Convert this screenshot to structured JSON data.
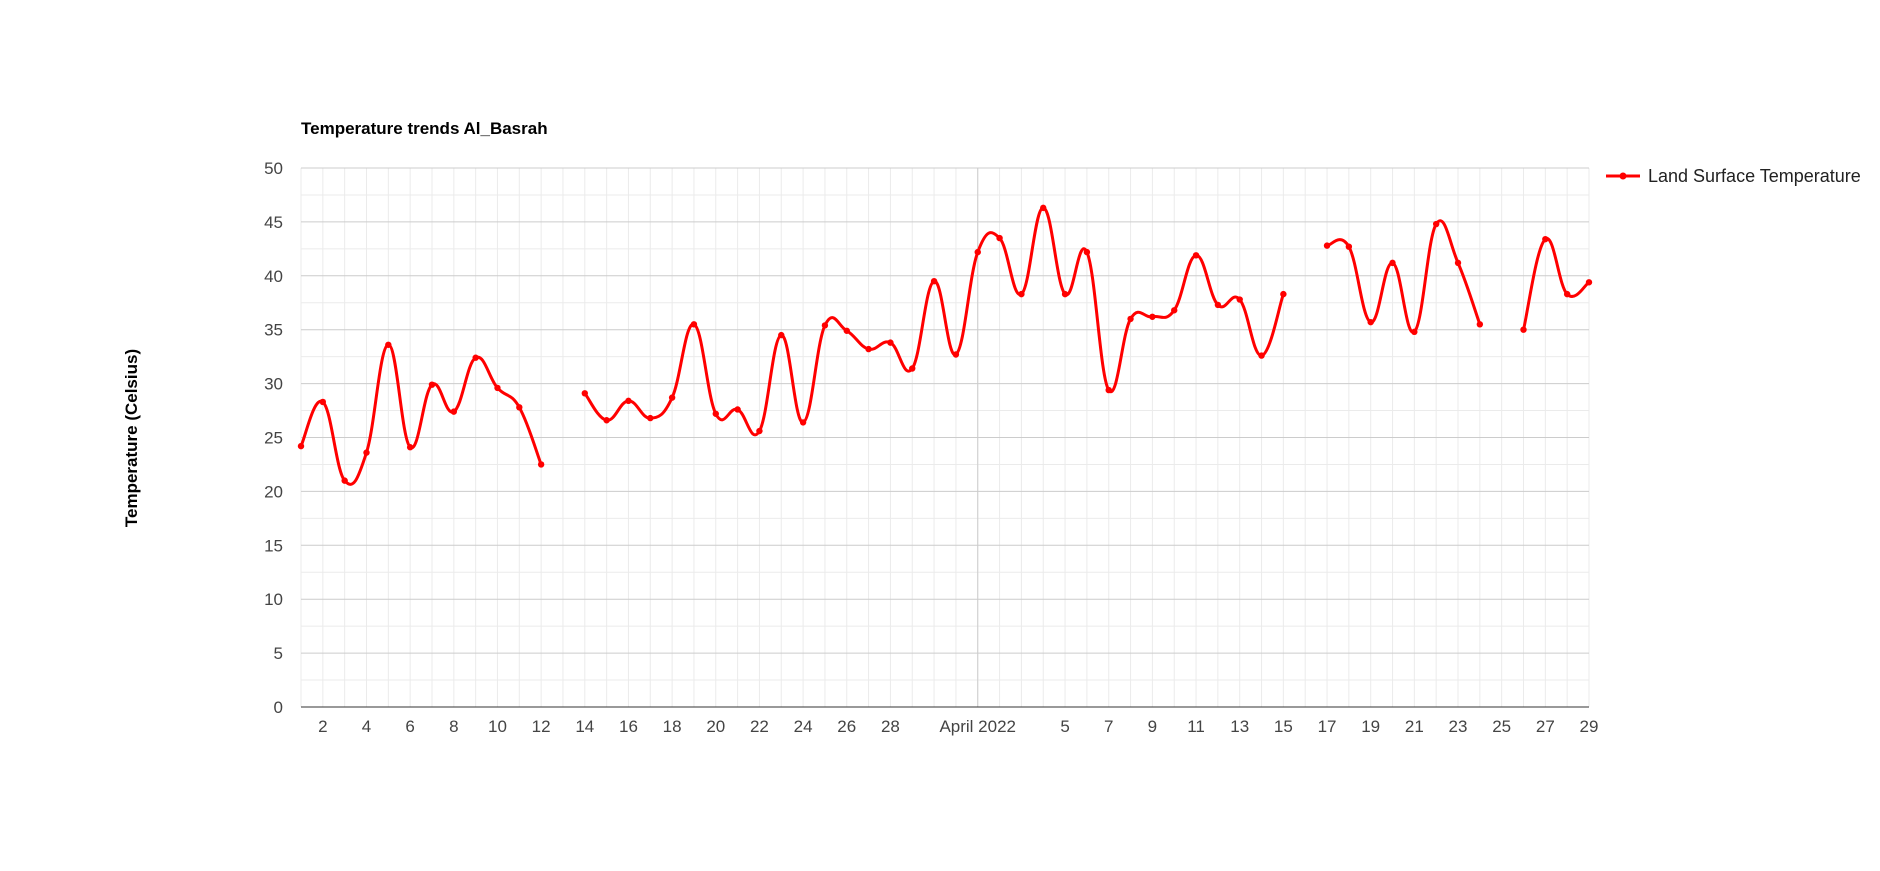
{
  "colors": {
    "series": "#ff0000"
  },
  "chart_data": {
    "type": "line",
    "title": "Temperature trends Al_Basrah",
    "xlabel": "",
    "ylabel": "Temperature (Celsius)",
    "ylim": [
      0,
      50
    ],
    "yticks": [
      0,
      5,
      10,
      15,
      20,
      25,
      30,
      35,
      40,
      45,
      50
    ],
    "xlim": [
      "2022-03-01",
      "2022-04-29"
    ],
    "grid": true,
    "legend_position": "right",
    "xticks": [
      {
        "date": "2022-03-02",
        "label": "2"
      },
      {
        "date": "2022-03-04",
        "label": "4"
      },
      {
        "date": "2022-03-06",
        "label": "6"
      },
      {
        "date": "2022-03-08",
        "label": "8"
      },
      {
        "date": "2022-03-10",
        "label": "10"
      },
      {
        "date": "2022-03-12",
        "label": "12"
      },
      {
        "date": "2022-03-14",
        "label": "14"
      },
      {
        "date": "2022-03-16",
        "label": "16"
      },
      {
        "date": "2022-03-18",
        "label": "18"
      },
      {
        "date": "2022-03-20",
        "label": "20"
      },
      {
        "date": "2022-03-22",
        "label": "22"
      },
      {
        "date": "2022-03-24",
        "label": "24"
      },
      {
        "date": "2022-03-26",
        "label": "26"
      },
      {
        "date": "2022-03-28",
        "label": "28"
      },
      {
        "date": "2022-04-01",
        "label": "April 2022"
      },
      {
        "date": "2022-04-05",
        "label": "5"
      },
      {
        "date": "2022-04-07",
        "label": "7"
      },
      {
        "date": "2022-04-09",
        "label": "9"
      },
      {
        "date": "2022-04-11",
        "label": "11"
      },
      {
        "date": "2022-04-13",
        "label": "13"
      },
      {
        "date": "2022-04-15",
        "label": "15"
      },
      {
        "date": "2022-04-17",
        "label": "17"
      },
      {
        "date": "2022-04-19",
        "label": "19"
      },
      {
        "date": "2022-04-21",
        "label": "21"
      },
      {
        "date": "2022-04-23",
        "label": "23"
      },
      {
        "date": "2022-04-25",
        "label": "25"
      },
      {
        "date": "2022-04-27",
        "label": "27"
      },
      {
        "date": "2022-04-29",
        "label": "29"
      }
    ],
    "series": [
      {
        "name": "Land Surface Temperature",
        "points": [
          {
            "x": "2022-03-01",
            "y": 24.2
          },
          {
            "x": "2022-03-02",
            "y": 28.3
          },
          {
            "x": "2022-03-03",
            "y": 21.0
          },
          {
            "x": "2022-03-04",
            "y": 23.6
          },
          {
            "x": "2022-03-05",
            "y": 33.6
          },
          {
            "x": "2022-03-06",
            "y": 24.1
          },
          {
            "x": "2022-03-07",
            "y": 29.9
          },
          {
            "x": "2022-03-08",
            "y": 27.4
          },
          {
            "x": "2022-03-09",
            "y": 32.4
          },
          {
            "x": "2022-03-10",
            "y": 29.6
          },
          {
            "x": "2022-03-11",
            "y": 27.8
          },
          {
            "x": "2022-03-12",
            "y": 22.5
          },
          {
            "x": "2022-03-13",
            "y": null
          },
          {
            "x": "2022-03-14",
            "y": 29.1
          },
          {
            "x": "2022-03-15",
            "y": 26.6
          },
          {
            "x": "2022-03-16",
            "y": 28.4
          },
          {
            "x": "2022-03-17",
            "y": 26.8
          },
          {
            "x": "2022-03-18",
            "y": 28.7
          },
          {
            "x": "2022-03-19",
            "y": 35.5
          },
          {
            "x": "2022-03-20",
            "y": 27.2
          },
          {
            "x": "2022-03-21",
            "y": 27.6
          },
          {
            "x": "2022-03-22",
            "y": 25.6
          },
          {
            "x": "2022-03-23",
            "y": 34.5
          },
          {
            "x": "2022-03-24",
            "y": 26.4
          },
          {
            "x": "2022-03-25",
            "y": 35.4
          },
          {
            "x": "2022-03-26",
            "y": 34.9
          },
          {
            "x": "2022-03-27",
            "y": 33.2
          },
          {
            "x": "2022-03-28",
            "y": 33.8
          },
          {
            "x": "2022-03-29",
            "y": 31.4
          },
          {
            "x": "2022-03-30",
            "y": 39.5
          },
          {
            "x": "2022-03-31",
            "y": 32.7
          },
          {
            "x": "2022-04-01",
            "y": 42.2
          },
          {
            "x": "2022-04-02",
            "y": 43.5
          },
          {
            "x": "2022-04-03",
            "y": 38.3
          },
          {
            "x": "2022-04-04",
            "y": 46.3
          },
          {
            "x": "2022-04-05",
            "y": 38.3
          },
          {
            "x": "2022-04-06",
            "y": 42.2
          },
          {
            "x": "2022-04-07",
            "y": 29.4
          },
          {
            "x": "2022-04-08",
            "y": 36.0
          },
          {
            "x": "2022-04-09",
            "y": 36.2
          },
          {
            "x": "2022-04-10",
            "y": 36.8
          },
          {
            "x": "2022-04-11",
            "y": 41.9
          },
          {
            "x": "2022-04-12",
            "y": 37.3
          },
          {
            "x": "2022-04-13",
            "y": 37.8
          },
          {
            "x": "2022-04-14",
            "y": 32.6
          },
          {
            "x": "2022-04-15",
            "y": 38.3
          },
          {
            "x": "2022-04-16",
            "y": null
          },
          {
            "x": "2022-04-17",
            "y": 42.8
          },
          {
            "x": "2022-04-18",
            "y": 42.7
          },
          {
            "x": "2022-04-19",
            "y": 35.7
          },
          {
            "x": "2022-04-20",
            "y": 41.2
          },
          {
            "x": "2022-04-21",
            "y": 34.8
          },
          {
            "x": "2022-04-22",
            "y": 44.8
          },
          {
            "x": "2022-04-23",
            "y": 41.2
          },
          {
            "x": "2022-04-24",
            "y": 35.5
          },
          {
            "x": "2022-04-25",
            "y": null
          },
          {
            "x": "2022-04-26",
            "y": 35.0
          },
          {
            "x": "2022-04-27",
            "y": 43.4
          },
          {
            "x": "2022-04-28",
            "y": 38.3
          },
          {
            "x": "2022-04-29",
            "y": 39.4
          }
        ]
      }
    ]
  }
}
